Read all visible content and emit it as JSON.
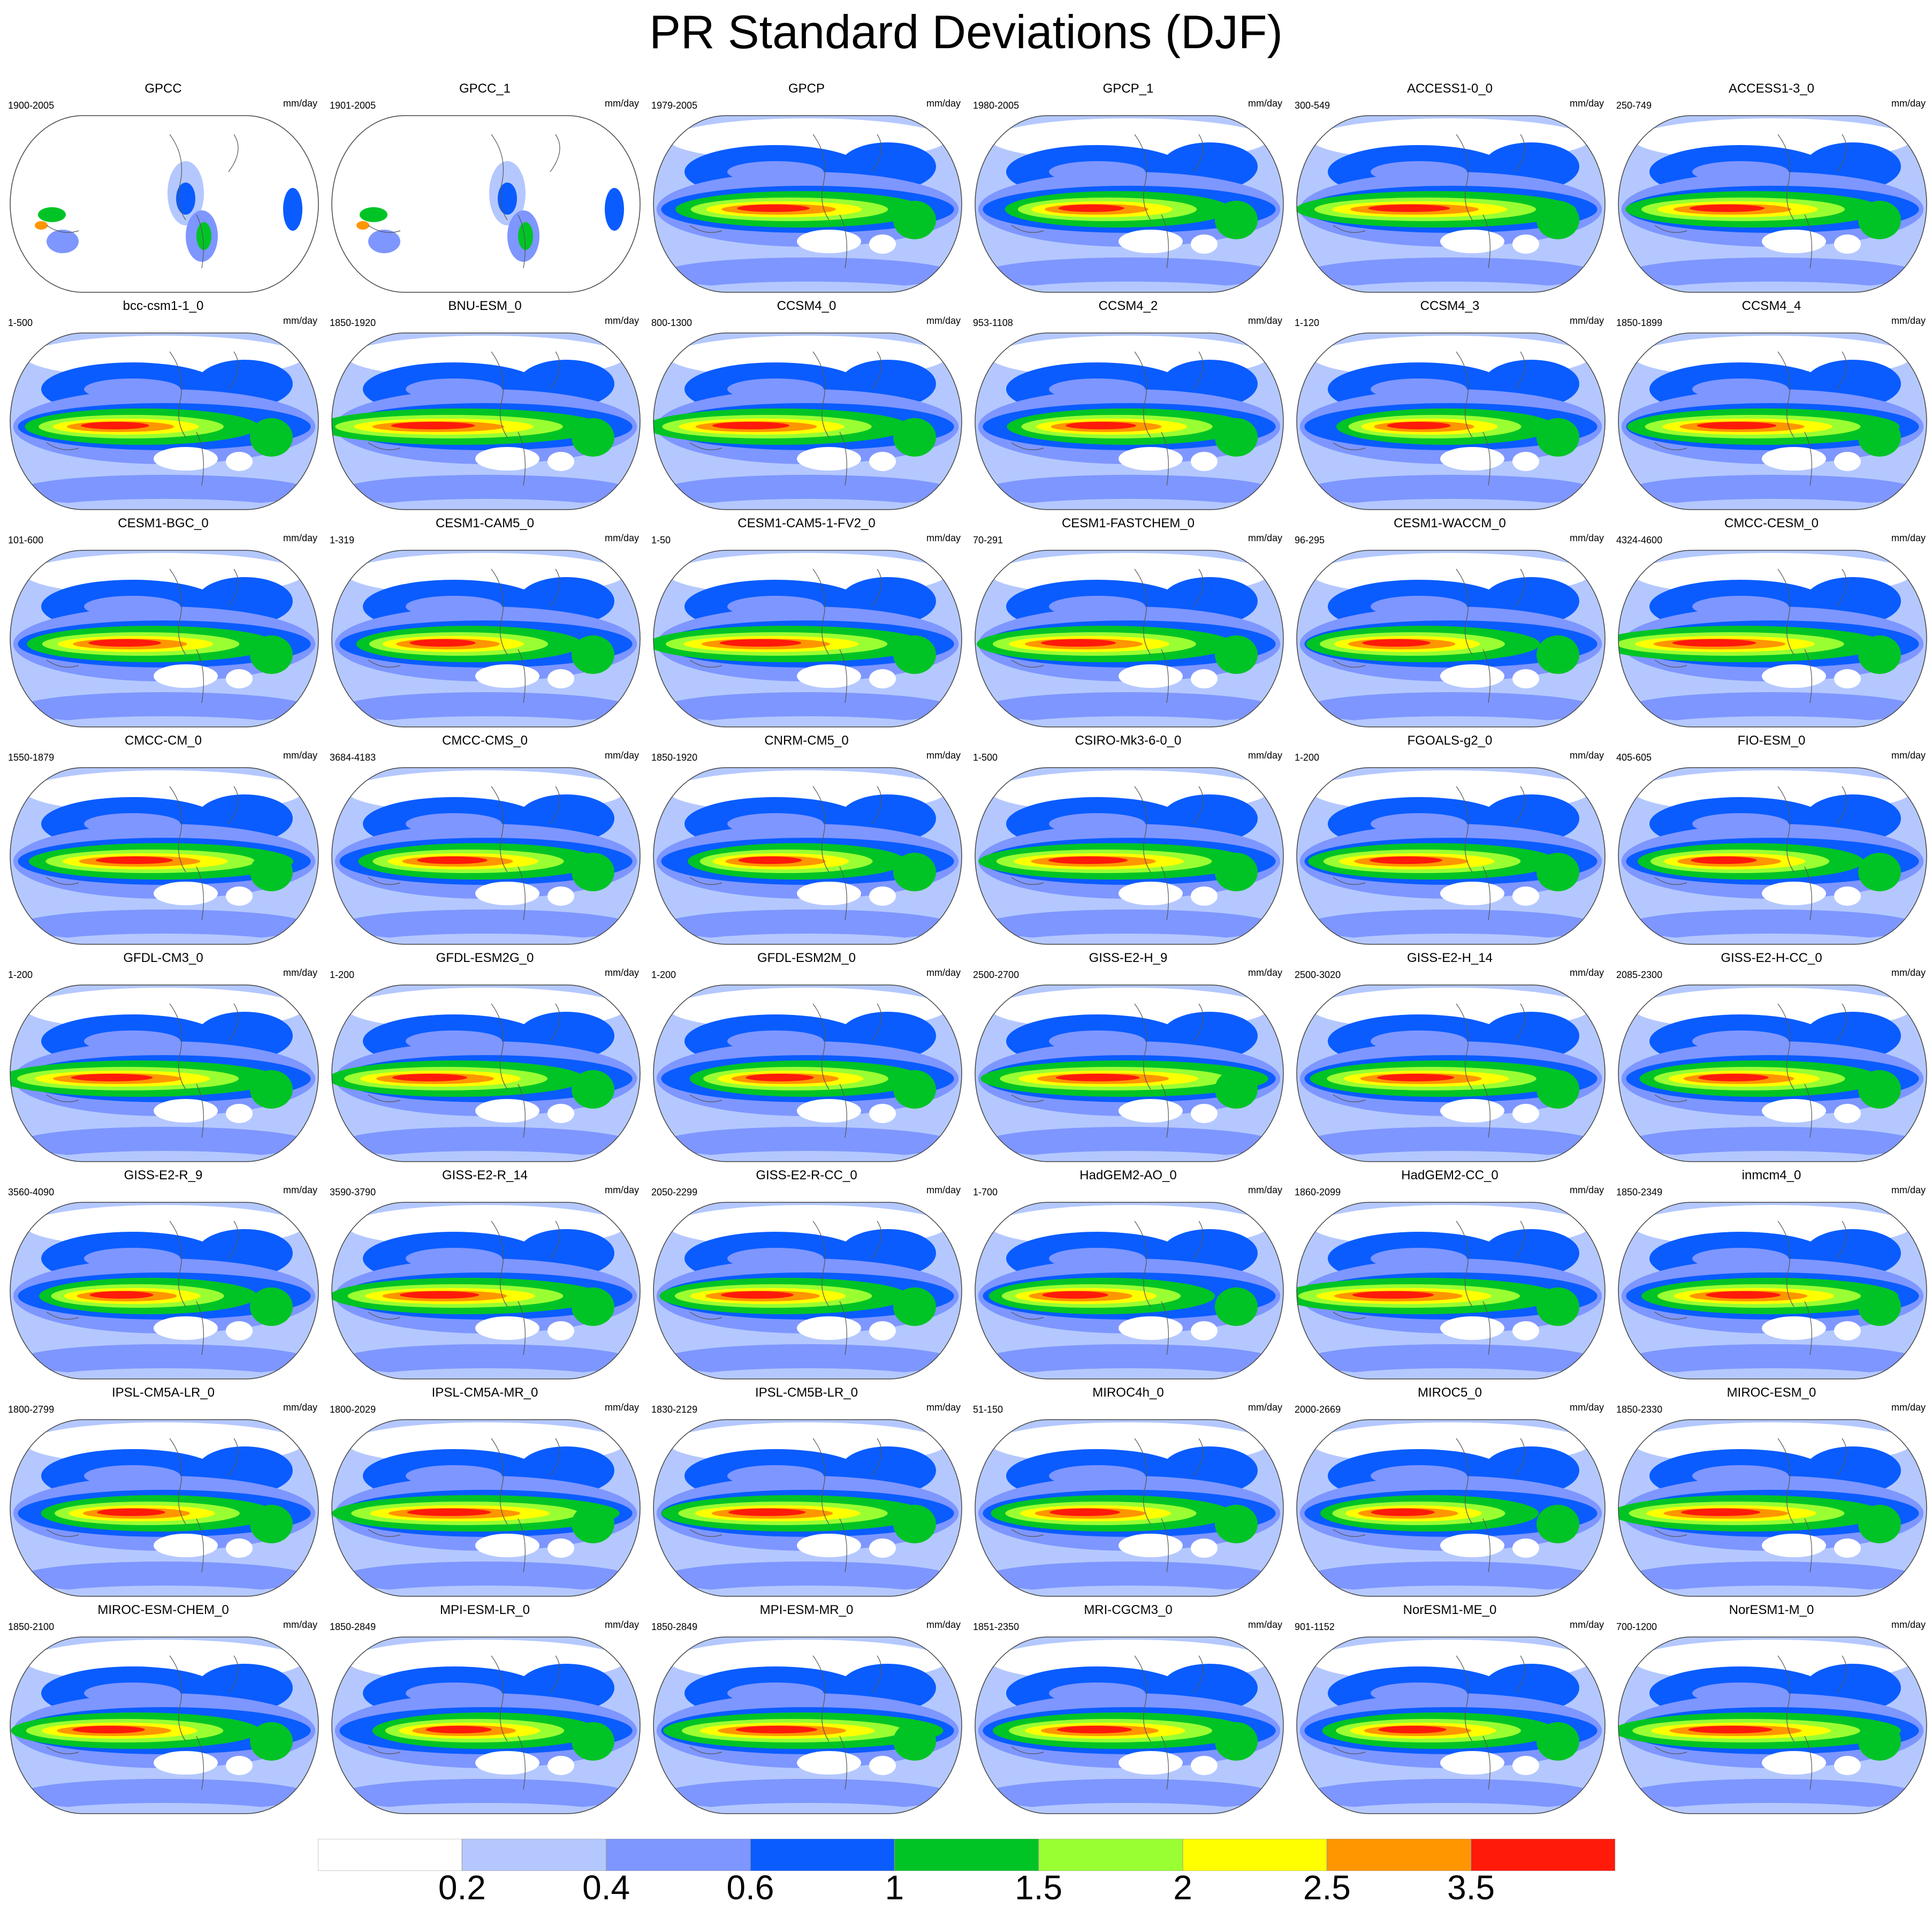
{
  "title": "PR Standard Deviations (DJF)",
  "chart_data": {
    "type": "heatmap",
    "title": "PR Standard Deviations (DJF)",
    "units": "mm/day",
    "projection": "Robinson global maps, 8 rows x 6 columns",
    "levels": [
      "0.2",
      "0.4",
      "0.6",
      "1",
      "1.5",
      "2",
      "2.5",
      "3.5"
    ],
    "colors": [
      "#ffffff",
      "#b4c8ff",
      "#7e96ff",
      "#0a5cff",
      "#00c425",
      "#9aff32",
      "#ffff00",
      "#ff9600",
      "#ff1a0a"
    ],
    "panels": [
      {
        "name": "GPCC",
        "range": "1900-2005",
        "kind": "obs"
      },
      {
        "name": "GPCC_1",
        "range": "1901-2005",
        "kind": "obs"
      },
      {
        "name": "GPCP",
        "range": "1979-2005"
      },
      {
        "name": "GPCP_1",
        "range": "1980-2005"
      },
      {
        "name": "ACCESS1-0_0",
        "range": "300-549"
      },
      {
        "name": "ACCESS1-3_0",
        "range": "250-749"
      },
      {
        "name": "bcc-csm1-1_0",
        "range": "1-500"
      },
      {
        "name": "BNU-ESM_0",
        "range": "1850-1920"
      },
      {
        "name": "CCSM4_0",
        "range": "800-1300"
      },
      {
        "name": "CCSM4_2",
        "range": "953-1108"
      },
      {
        "name": "CCSM4_3",
        "range": "1-120"
      },
      {
        "name": "CCSM4_4",
        "range": "1850-1899"
      },
      {
        "name": "CESM1-BGC_0",
        "range": "101-600"
      },
      {
        "name": "CESM1-CAM5_0",
        "range": "1-319"
      },
      {
        "name": "CESM1-CAM5-1-FV2_0",
        "range": "1-50"
      },
      {
        "name": "CESM1-FASTCHEM_0",
        "range": "70-291"
      },
      {
        "name": "CESM1-WACCM_0",
        "range": "96-295"
      },
      {
        "name": "CMCC-CESM_0",
        "range": "4324-4600"
      },
      {
        "name": "CMCC-CM_0",
        "range": "1550-1879"
      },
      {
        "name": "CMCC-CMS_0",
        "range": "3684-4183"
      },
      {
        "name": "CNRM-CM5_0",
        "range": "1850-1920"
      },
      {
        "name": "CSIRO-Mk3-6-0_0",
        "range": "1-500"
      },
      {
        "name": "FGOALS-g2_0",
        "range": "1-200"
      },
      {
        "name": "FIO-ESM_0",
        "range": "405-605"
      },
      {
        "name": "GFDL-CM3_0",
        "range": "1-200"
      },
      {
        "name": "GFDL-ESM2G_0",
        "range": "1-200"
      },
      {
        "name": "GFDL-ESM2M_0",
        "range": "1-200"
      },
      {
        "name": "GISS-E2-H_9",
        "range": "2500-2700"
      },
      {
        "name": "GISS-E2-H_14",
        "range": "2500-3020"
      },
      {
        "name": "GISS-E2-H-CC_0",
        "range": "2085-2300"
      },
      {
        "name": "GISS-E2-R_9",
        "range": "3560-4090"
      },
      {
        "name": "GISS-E2-R_14",
        "range": "3590-3790"
      },
      {
        "name": "GISS-E2-R-CC_0",
        "range": "2050-2299"
      },
      {
        "name": "HadGEM2-AO_0",
        "range": "1-700"
      },
      {
        "name": "HadGEM2-CC_0",
        "range": "1860-2099"
      },
      {
        "name": "inmcm4_0",
        "range": "1850-2349"
      },
      {
        "name": "IPSL-CM5A-LR_0",
        "range": "1800-2799"
      },
      {
        "name": "IPSL-CM5A-MR_0",
        "range": "1800-2029"
      },
      {
        "name": "IPSL-CM5B-LR_0",
        "range": "1830-2129"
      },
      {
        "name": "MIROC4h_0",
        "range": "51-150"
      },
      {
        "name": "MIROC5_0",
        "range": "2000-2669"
      },
      {
        "name": "MIROC-ESM_0",
        "range": "1850-2330"
      },
      {
        "name": "MIROC-ESM-CHEM_0",
        "range": "1850-2100"
      },
      {
        "name": "MPI-ESM-LR_0",
        "range": "1850-2849"
      },
      {
        "name": "MPI-ESM-MR_0",
        "range": "1850-2849"
      },
      {
        "name": "MRI-CGCM3_0",
        "range": "1851-2350"
      },
      {
        "name": "NorESM1-ME_0",
        "range": "901-1152"
      },
      {
        "name": "NorESM1-M_0",
        "range": "700-1200"
      }
    ]
  }
}
